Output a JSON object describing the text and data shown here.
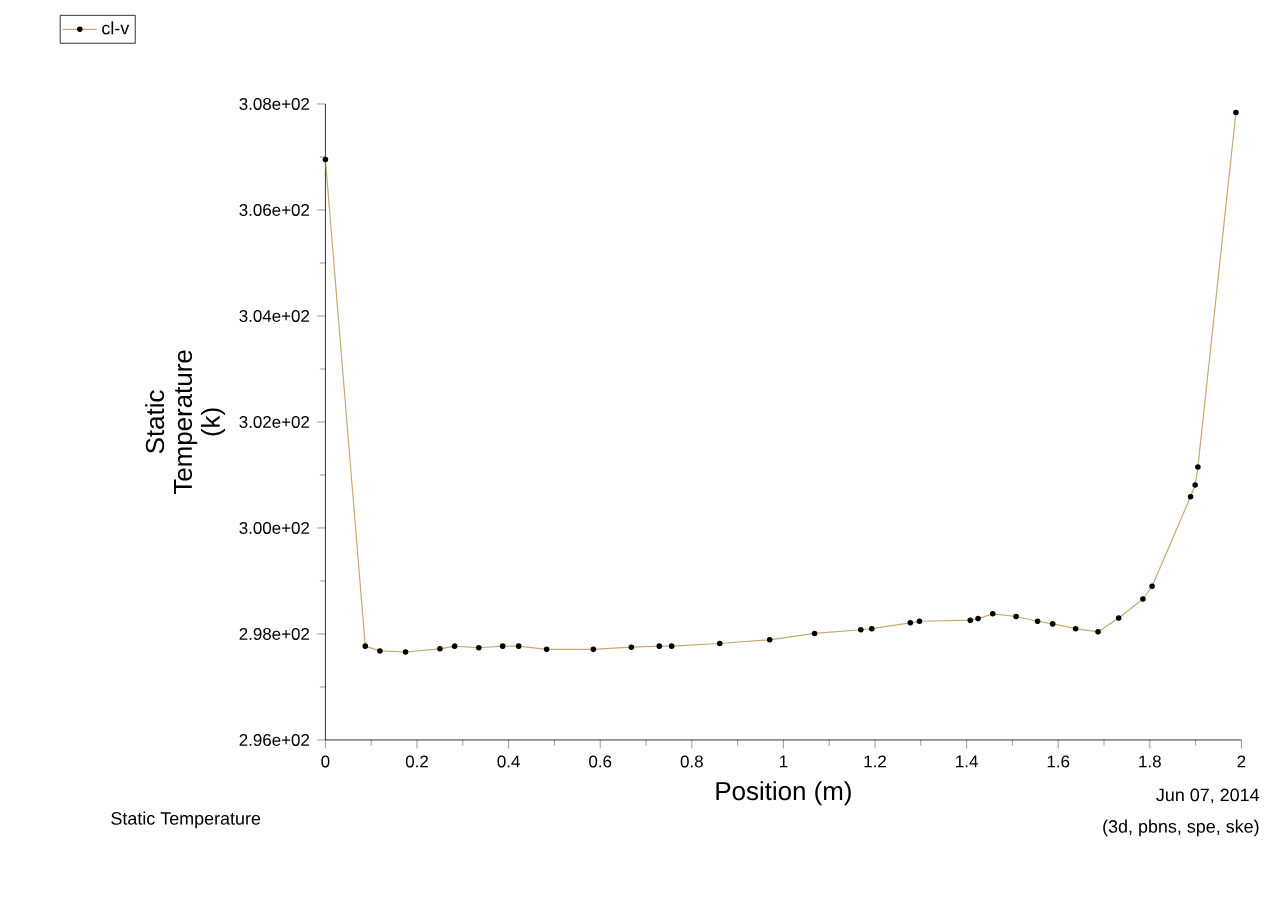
{
  "chart_data": {
    "type": "line",
    "xlabel": "Position (m)",
    "ylabel": "Static Temperature (k)",
    "annotations": [
      "Static Temperature",
      "Jun 07, 2014",
      "(3d, pbns, spe, ske)"
    ],
    "xlim": [
      0,
      2
    ],
    "xticks": [
      0,
      0.2,
      0.4,
      0.6,
      0.8,
      1,
      1.2,
      1.4,
      1.6,
      1.8,
      2
    ],
    "ylim": [
      296,
      308
    ],
    "yticks": [
      {
        "value": 296,
        "label": "2.96e+02"
      },
      {
        "value": 298,
        "label": "2.98e+02"
      },
      {
        "value": 300,
        "label": "3.00e+02"
      },
      {
        "value": 302,
        "label": "3.02e+02"
      },
      {
        "value": 304,
        "label": "3.04e+02"
      },
      {
        "value": 306,
        "label": "3.06e+02"
      },
      {
        "value": 308,
        "label": "3.08e+02"
      }
    ],
    "legend": "top left",
    "marker": "circle",
    "line_style": "solid",
    "grid": false,
    "x": [
      0,
      0.087,
      0.119,
      0.175,
      0.25,
      0.282,
      0.335,
      0.387,
      0.422,
      0.483,
      0.585,
      0.668,
      0.729,
      0.756,
      0.861,
      0.97,
      1.068,
      1.169,
      1.193,
      1.277,
      1.297,
      1.408,
      1.425,
      1.457,
      1.508,
      1.555,
      1.588,
      1.638,
      1.687,
      1.732,
      1.785,
      1.805,
      1.889,
      1.899,
      1.905,
      1.988
    ],
    "series": [
      {
        "name": "cl-v",
        "color": "#c8a870",
        "values": [
          306.95,
          297.77,
          297.68,
          297.66,
          297.72,
          297.77,
          297.74,
          297.77,
          297.77,
          297.71,
          297.71,
          297.75,
          297.77,
          297.77,
          297.82,
          297.89,
          298.01,
          298.08,
          298.1,
          298.21,
          298.24,
          298.26,
          298.29,
          298.38,
          298.33,
          298.24,
          298.19,
          298.1,
          298.04,
          298.3,
          298.66,
          298.9,
          300.59,
          300.81,
          301.15,
          307.84
        ]
      }
    ]
  }
}
